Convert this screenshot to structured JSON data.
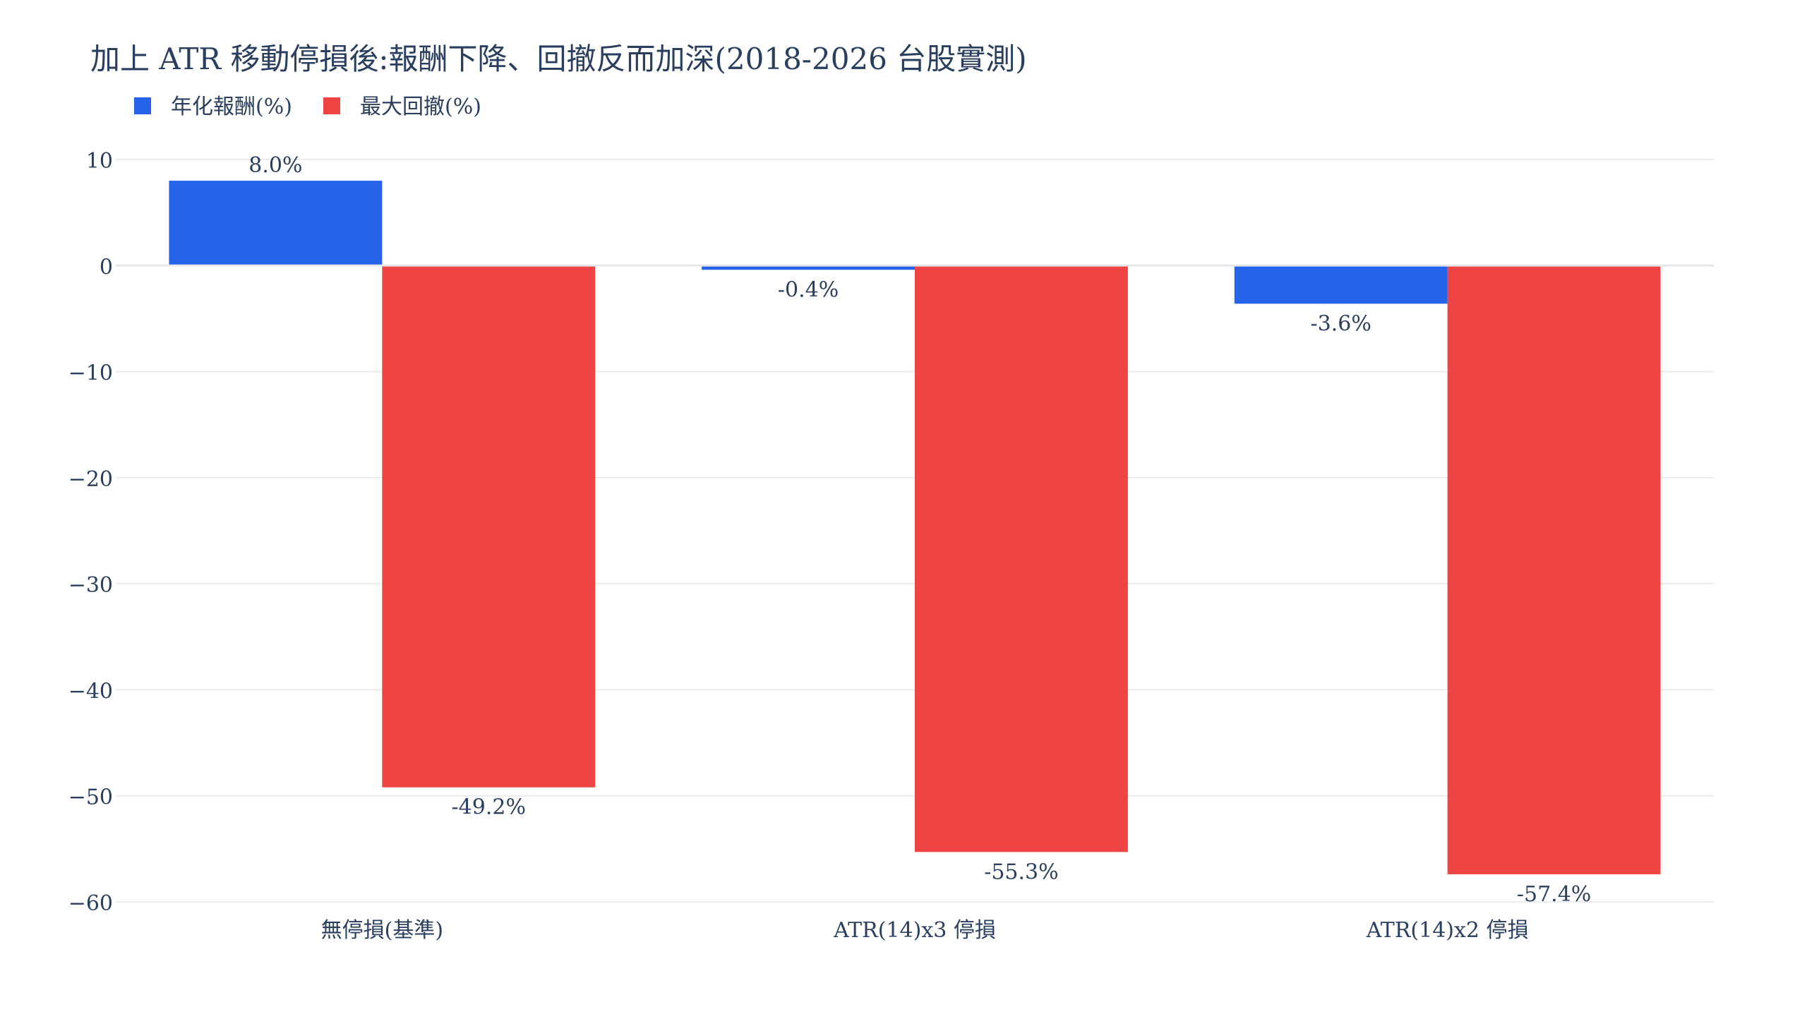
{
  "chart_data": {
    "type": "bar",
    "title": "加上 ATR 移動停損後:報酬下降、回撤反而加深(2018-2026 台股實測)",
    "xlabel": "",
    "ylabel": "",
    "categories": [
      "無停損(基準)",
      "ATR(14)x3 停損",
      "ATR(14)x2 停損"
    ],
    "series": [
      {
        "name": "年化報酬(%)",
        "values": [
          8.0,
          -0.4,
          -3.6
        ],
        "labels": [
          "8.0%",
          "-0.4%",
          "-3.6%"
        ],
        "color": "#2563eb"
      },
      {
        "name": "最大回撤(%)",
        "values": [
          -49.2,
          -55.3,
          -57.4
        ],
        "labels": [
          "-49.2%",
          "-55.3%",
          "-57.4%"
        ],
        "color": "#ef4444"
      }
    ],
    "ylim": [
      -60,
      10
    ],
    "yticks": [
      10,
      0,
      -10,
      -20,
      -30,
      -40,
      -50,
      -60
    ],
    "ytick_labels": [
      "10",
      "0",
      "−10",
      "−20",
      "−30",
      "−40",
      "−50",
      "−60"
    ],
    "grid": true,
    "legend_position": "top-left"
  }
}
